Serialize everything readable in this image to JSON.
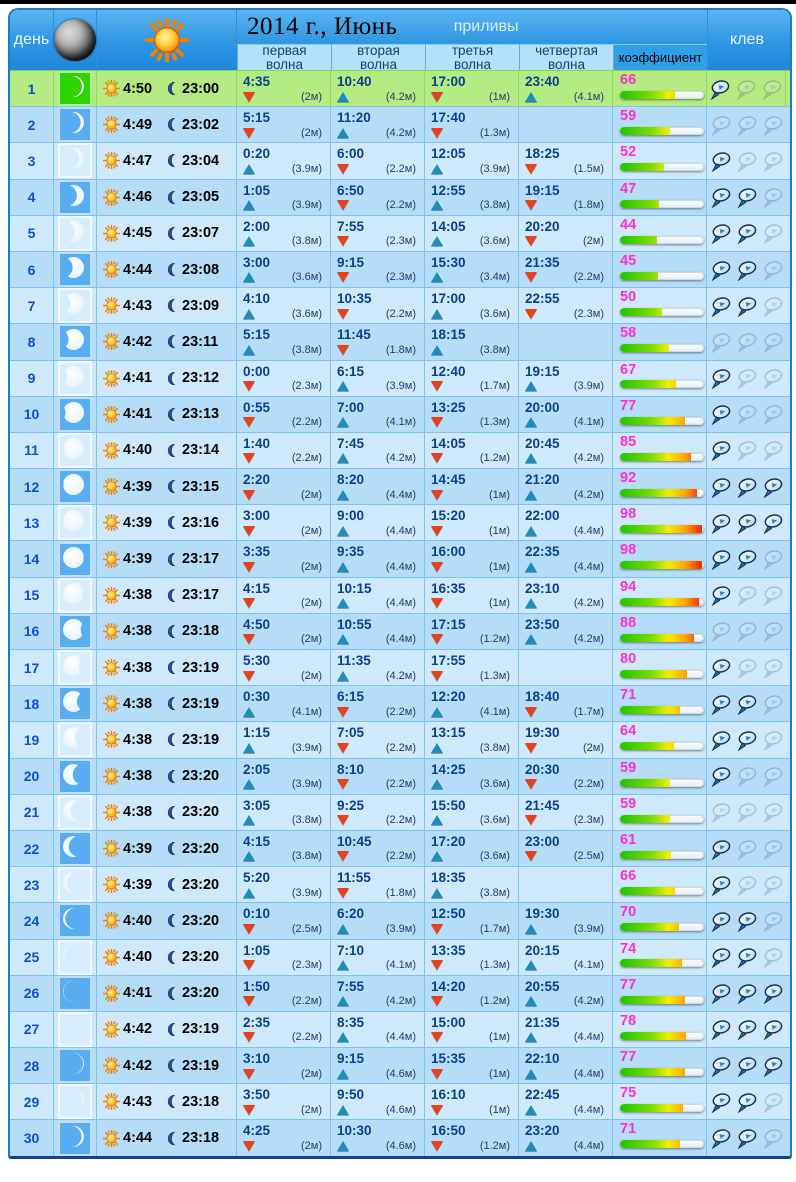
{
  "header": {
    "title": "2014 г., Июнь",
    "tides_label": "приливы",
    "day_label": "день",
    "bite_label": "клев",
    "coefficient_label": "коэффициент",
    "wave_labels": [
      {
        "l1": "первая",
        "l2": "волна"
      },
      {
        "l1": "вторая",
        "l2": "волна"
      },
      {
        "l1": "третья",
        "l2": "волна"
      },
      {
        "l1": "четвертая",
        "l2": "волна"
      }
    ]
  },
  "colors": {
    "header_blue": "#2f96e2",
    "row_even": "#b5ddf7",
    "row_odd": "#cfe9fc",
    "highlight_green": "#b4eb83",
    "moon_cell_even": "#58acf0",
    "moon_cell_odd": "#d7edfd",
    "moon_cell_highlight": "#2fd400",
    "coefficient_number": "#ff2fd0",
    "tide_up_arrow": "#1f8cba",
    "tide_down_arrow": "#e8401c",
    "time_text": "#0a3f8c"
  },
  "rows": [
    {
      "day": 1,
      "highlight": true,
      "sunrise": "4:50",
      "sunset": "23:00",
      "moon": {
        "lit": 0.1,
        "side": "right"
      },
      "coeff": 66,
      "fish": 1,
      "tides": [
        {
          "t": "4:35",
          "dir": "down",
          "h": "2м"
        },
        {
          "t": "10:40",
          "dir": "up",
          "h": "4.2м"
        },
        {
          "t": "17:00",
          "dir": "down",
          "h": "1м"
        },
        {
          "t": "23:40",
          "dir": "up",
          "h": "4.1м"
        }
      ]
    },
    {
      "day": 2,
      "highlight": false,
      "sunrise": "4:49",
      "sunset": "23:02",
      "moon": {
        "lit": 0.16,
        "side": "right"
      },
      "coeff": 59,
      "fish": 0,
      "tides": [
        {
          "t": "5:15",
          "dir": "down",
          "h": "2м"
        },
        {
          "t": "11:20",
          "dir": "up",
          "h": "4.2м"
        },
        {
          "t": "17:40",
          "dir": "down",
          "h": "1.3м"
        },
        null
      ]
    },
    {
      "day": 3,
      "highlight": false,
      "sunrise": "4:47",
      "sunset": "23:04",
      "moon": {
        "lit": 0.24,
        "side": "right"
      },
      "coeff": 52,
      "fish": 1,
      "tides": [
        {
          "t": "0:20",
          "dir": "up",
          "h": "3.9м"
        },
        {
          "t": "6:00",
          "dir": "down",
          "h": "2.2м"
        },
        {
          "t": "12:05",
          "dir": "up",
          "h": "3.9м"
        },
        {
          "t": "18:25",
          "dir": "down",
          "h": "1.5м"
        }
      ]
    },
    {
      "day": 4,
      "highlight": false,
      "sunrise": "4:46",
      "sunset": "23:05",
      "moon": {
        "lit": 0.34,
        "side": "right"
      },
      "coeff": 47,
      "fish": 2,
      "tides": [
        {
          "t": "1:05",
          "dir": "up",
          "h": "3.9м"
        },
        {
          "t": "6:50",
          "dir": "down",
          "h": "2.2м"
        },
        {
          "t": "12:55",
          "dir": "up",
          "h": "3.8м"
        },
        {
          "t": "19:15",
          "dir": "down",
          "h": "1.8м"
        }
      ]
    },
    {
      "day": 5,
      "highlight": false,
      "sunrise": "4:45",
      "sunset": "23:07",
      "moon": {
        "lit": 0.44,
        "side": "right"
      },
      "coeff": 44,
      "fish": 2,
      "tides": [
        {
          "t": "2:00",
          "dir": "up",
          "h": "3.8м"
        },
        {
          "t": "7:55",
          "dir": "down",
          "h": "2.3м"
        },
        {
          "t": "14:05",
          "dir": "up",
          "h": "3.6м"
        },
        {
          "t": "20:20",
          "dir": "down",
          "h": "2м"
        }
      ]
    },
    {
      "day": 6,
      "highlight": false,
      "sunrise": "4:44",
      "sunset": "23:08",
      "moon": {
        "lit": 0.54,
        "side": "right"
      },
      "coeff": 45,
      "fish": 2,
      "tides": [
        {
          "t": "3:00",
          "dir": "up",
          "h": "3.6м"
        },
        {
          "t": "9:15",
          "dir": "down",
          "h": "2.3м"
        },
        {
          "t": "15:30",
          "dir": "up",
          "h": "3.4м"
        },
        {
          "t": "21:35",
          "dir": "down",
          "h": "2.2м"
        }
      ]
    },
    {
      "day": 7,
      "highlight": false,
      "sunrise": "4:43",
      "sunset": "23:09",
      "moon": {
        "lit": 0.64,
        "side": "right"
      },
      "coeff": 50,
      "fish": 2,
      "tides": [
        {
          "t": "4:10",
          "dir": "up",
          "h": "3.6м"
        },
        {
          "t": "10:35",
          "dir": "down",
          "h": "2.2м"
        },
        {
          "t": "17:00",
          "dir": "up",
          "h": "3.6м"
        },
        {
          "t": "22:55",
          "dir": "down",
          "h": "2.3м"
        }
      ]
    },
    {
      "day": 8,
      "highlight": false,
      "sunrise": "4:42",
      "sunset": "23:11",
      "moon": {
        "lit": 0.74,
        "side": "right"
      },
      "coeff": 58,
      "fish": 0,
      "tides": [
        {
          "t": "5:15",
          "dir": "up",
          "h": "3.8м"
        },
        {
          "t": "11:45",
          "dir": "down",
          "h": "1.8м"
        },
        {
          "t": "18:15",
          "dir": "up",
          "h": "3.8м"
        },
        null
      ]
    },
    {
      "day": 9,
      "highlight": false,
      "sunrise": "4:41",
      "sunset": "23:12",
      "moon": {
        "lit": 0.82,
        "side": "right"
      },
      "coeff": 67,
      "fish": 1,
      "tides": [
        {
          "t": "0:00",
          "dir": "down",
          "h": "2.3м"
        },
        {
          "t": "6:15",
          "dir": "up",
          "h": "3.9м"
        },
        {
          "t": "12:40",
          "dir": "down",
          "h": "1.7м"
        },
        {
          "t": "19:15",
          "dir": "up",
          "h": "3.9м"
        }
      ]
    },
    {
      "day": 10,
      "highlight": false,
      "sunrise": "4:41",
      "sunset": "23:13",
      "moon": {
        "lit": 0.88,
        "side": "right"
      },
      "coeff": 77,
      "fish": 1,
      "tides": [
        {
          "t": "0:55",
          "dir": "down",
          "h": "2.2м"
        },
        {
          "t": "7:00",
          "dir": "up",
          "h": "4.1м"
        },
        {
          "t": "13:25",
          "dir": "down",
          "h": "1.3м"
        },
        {
          "t": "20:00",
          "dir": "up",
          "h": "4.1м"
        }
      ]
    },
    {
      "day": 11,
      "highlight": false,
      "sunrise": "4:40",
      "sunset": "23:14",
      "moon": {
        "lit": 0.93,
        "side": "right"
      },
      "coeff": 85,
      "fish": 1,
      "tides": [
        {
          "t": "1:40",
          "dir": "down",
          "h": "2.2м"
        },
        {
          "t": "7:45",
          "dir": "up",
          "h": "4.2м"
        },
        {
          "t": "14:05",
          "dir": "down",
          "h": "1.2м"
        },
        {
          "t": "20:45",
          "dir": "up",
          "h": "4.2м"
        }
      ]
    },
    {
      "day": 12,
      "highlight": false,
      "sunrise": "4:39",
      "sunset": "23:15",
      "moon": {
        "lit": 0.97,
        "side": "right"
      },
      "coeff": 92,
      "fish": 3,
      "tides": [
        {
          "t": "2:20",
          "dir": "down",
          "h": "2м"
        },
        {
          "t": "8:20",
          "dir": "up",
          "h": "4.4м"
        },
        {
          "t": "14:45",
          "dir": "down",
          "h": "1м"
        },
        {
          "t": "21:20",
          "dir": "up",
          "h": "4.2м"
        }
      ]
    },
    {
      "day": 13,
      "highlight": false,
      "sunrise": "4:39",
      "sunset": "23:16",
      "moon": {
        "lit": 1.0,
        "side": "right"
      },
      "coeff": 98,
      "fish": 3,
      "tides": [
        {
          "t": "3:00",
          "dir": "down",
          "h": "2м"
        },
        {
          "t": "9:00",
          "dir": "up",
          "h": "4.4м"
        },
        {
          "t": "15:20",
          "dir": "down",
          "h": "1м"
        },
        {
          "t": "22:00",
          "dir": "up",
          "h": "4.4м"
        }
      ]
    },
    {
      "day": 14,
      "highlight": false,
      "sunrise": "4:39",
      "sunset": "23:17",
      "moon": {
        "lit": 0.97,
        "side": "left"
      },
      "coeff": 98,
      "fish": 2,
      "tides": [
        {
          "t": "3:35",
          "dir": "down",
          "h": "2м"
        },
        {
          "t": "9:35",
          "dir": "up",
          "h": "4.4м"
        },
        {
          "t": "16:00",
          "dir": "down",
          "h": "1м"
        },
        {
          "t": "22:35",
          "dir": "up",
          "h": "4.4м"
        }
      ]
    },
    {
      "day": 15,
      "highlight": false,
      "sunrise": "4:38",
      "sunset": "23:17",
      "moon": {
        "lit": 0.92,
        "side": "left"
      },
      "coeff": 94,
      "fish": 1,
      "tides": [
        {
          "t": "4:15",
          "dir": "down",
          "h": "2м"
        },
        {
          "t": "10:15",
          "dir": "up",
          "h": "4.4м"
        },
        {
          "t": "16:35",
          "dir": "down",
          "h": "1м"
        },
        {
          "t": "23:10",
          "dir": "up",
          "h": "4.2м"
        }
      ]
    },
    {
      "day": 16,
      "highlight": false,
      "sunrise": "4:38",
      "sunset": "23:18",
      "moon": {
        "lit": 0.85,
        "side": "left"
      },
      "coeff": 88,
      "fish": 0,
      "tides": [
        {
          "t": "4:50",
          "dir": "down",
          "h": "2м"
        },
        {
          "t": "10:55",
          "dir": "up",
          "h": "4.4м"
        },
        {
          "t": "17:15",
          "dir": "down",
          "h": "1.2м"
        },
        {
          "t": "23:50",
          "dir": "up",
          "h": "4.2м"
        }
      ]
    },
    {
      "day": 17,
      "highlight": false,
      "sunrise": "4:38",
      "sunset": "23:19",
      "moon": {
        "lit": 0.76,
        "side": "left"
      },
      "coeff": 80,
      "fish": 1,
      "tides": [
        {
          "t": "5:30",
          "dir": "down",
          "h": "2м"
        },
        {
          "t": "11:35",
          "dir": "up",
          "h": "4.2м"
        },
        {
          "t": "17:55",
          "dir": "down",
          "h": "1.3м"
        },
        null
      ]
    },
    {
      "day": 18,
      "highlight": false,
      "sunrise": "4:38",
      "sunset": "23:19",
      "moon": {
        "lit": 0.66,
        "side": "left"
      },
      "coeff": 71,
      "fish": 2,
      "tides": [
        {
          "t": "0:30",
          "dir": "up",
          "h": "4.1м"
        },
        {
          "t": "6:15",
          "dir": "down",
          "h": "2.2м"
        },
        {
          "t": "12:20",
          "dir": "up",
          "h": "4.1м"
        },
        {
          "t": "18:40",
          "dir": "down",
          "h": "1.7м"
        }
      ]
    },
    {
      "day": 19,
      "highlight": false,
      "sunrise": "4:38",
      "sunset": "23:19",
      "moon": {
        "lit": 0.56,
        "side": "left"
      },
      "coeff": 64,
      "fish": 2,
      "tides": [
        {
          "t": "1:15",
          "dir": "up",
          "h": "3.9м"
        },
        {
          "t": "7:05",
          "dir": "down",
          "h": "2.2м"
        },
        {
          "t": "13:15",
          "dir": "up",
          "h": "3.8м"
        },
        {
          "t": "19:30",
          "dir": "down",
          "h": "2м"
        }
      ]
    },
    {
      "day": 20,
      "highlight": false,
      "sunrise": "4:38",
      "sunset": "23:20",
      "moon": {
        "lit": 0.46,
        "side": "left"
      },
      "coeff": 59,
      "fish": 1,
      "tides": [
        {
          "t": "2:05",
          "dir": "up",
          "h": "3.9м"
        },
        {
          "t": "8:10",
          "dir": "down",
          "h": "2.2м"
        },
        {
          "t": "14:25",
          "dir": "up",
          "h": "3.6м"
        },
        {
          "t": "20:30",
          "dir": "down",
          "h": "2.2м"
        }
      ]
    },
    {
      "day": 21,
      "highlight": false,
      "sunrise": "4:38",
      "sunset": "23:20",
      "moon": {
        "lit": 0.36,
        "side": "left"
      },
      "coeff": 59,
      "fish": 0,
      "tides": [
        {
          "t": "3:05",
          "dir": "up",
          "h": "3.8м"
        },
        {
          "t": "9:25",
          "dir": "down",
          "h": "2.2м"
        },
        {
          "t": "15:50",
          "dir": "up",
          "h": "3.6м"
        },
        {
          "t": "21:45",
          "dir": "down",
          "h": "2.3м"
        }
      ]
    },
    {
      "day": 22,
      "highlight": false,
      "sunrise": "4:39",
      "sunset": "23:20",
      "moon": {
        "lit": 0.27,
        "side": "left"
      },
      "coeff": 61,
      "fish": 1,
      "tides": [
        {
          "t": "4:15",
          "dir": "up",
          "h": "3.8м"
        },
        {
          "t": "10:45",
          "dir": "down",
          "h": "2.2м"
        },
        {
          "t": "17:20",
          "dir": "up",
          "h": "3.6м"
        },
        {
          "t": "23:00",
          "dir": "down",
          "h": "2.5м"
        }
      ]
    },
    {
      "day": 23,
      "highlight": false,
      "sunrise": "4:39",
      "sunset": "23:20",
      "moon": {
        "lit": 0.18,
        "side": "left"
      },
      "coeff": 66,
      "fish": 1,
      "tides": [
        {
          "t": "5:20",
          "dir": "up",
          "h": "3.9м"
        },
        {
          "t": "11:55",
          "dir": "down",
          "h": "1.8м"
        },
        {
          "t": "18:35",
          "dir": "up",
          "h": "3.8м"
        },
        null
      ]
    },
    {
      "day": 24,
      "highlight": false,
      "sunrise": "4:40",
      "sunset": "23:20",
      "moon": {
        "lit": 0.11,
        "side": "left"
      },
      "coeff": 70,
      "fish": 2,
      "tides": [
        {
          "t": "0:10",
          "dir": "down",
          "h": "2.5м"
        },
        {
          "t": "6:20",
          "dir": "up",
          "h": "3.9м"
        },
        {
          "t": "12:50",
          "dir": "down",
          "h": "1.7м"
        },
        {
          "t": "19:30",
          "dir": "up",
          "h": "3.9м"
        }
      ]
    },
    {
      "day": 25,
      "highlight": false,
      "sunrise": "4:40",
      "sunset": "23:20",
      "moon": {
        "lit": 0.05,
        "side": "left"
      },
      "coeff": 74,
      "fish": 2,
      "tides": [
        {
          "t": "1:05",
          "dir": "down",
          "h": "2.3м"
        },
        {
          "t": "7:10",
          "dir": "up",
          "h": "4.1м"
        },
        {
          "t": "13:35",
          "dir": "down",
          "h": "1.3м"
        },
        {
          "t": "20:15",
          "dir": "up",
          "h": "4.1м"
        }
      ]
    },
    {
      "day": 26,
      "highlight": false,
      "sunrise": "4:41",
      "sunset": "23:20",
      "moon": {
        "lit": 0.02,
        "side": "left"
      },
      "coeff": 77,
      "fish": 3,
      "tides": [
        {
          "t": "1:50",
          "dir": "down",
          "h": "2.2м"
        },
        {
          "t": "7:55",
          "dir": "up",
          "h": "4.2м"
        },
        {
          "t": "14:20",
          "dir": "down",
          "h": "1.2м"
        },
        {
          "t": "20:55",
          "dir": "up",
          "h": "4.2м"
        }
      ]
    },
    {
      "day": 27,
      "highlight": false,
      "sunrise": "4:42",
      "sunset": "23:19",
      "moon": {
        "lit": 0.0,
        "side": "right"
      },
      "coeff": 78,
      "fish": 3,
      "tides": [
        {
          "t": "2:35",
          "dir": "down",
          "h": "2.2м"
        },
        {
          "t": "8:35",
          "dir": "up",
          "h": "4.4м"
        },
        {
          "t": "15:00",
          "dir": "down",
          "h": "1м"
        },
        {
          "t": "21:35",
          "dir": "up",
          "h": "4.4м"
        }
      ]
    },
    {
      "day": 28,
      "highlight": false,
      "sunrise": "4:42",
      "sunset": "23:19",
      "moon": {
        "lit": 0.04,
        "side": "right"
      },
      "coeff": 77,
      "fish": 3,
      "tides": [
        {
          "t": "3:10",
          "dir": "down",
          "h": "2м"
        },
        {
          "t": "9:15",
          "dir": "up",
          "h": "4.6м"
        },
        {
          "t": "15:35",
          "dir": "down",
          "h": "1м"
        },
        {
          "t": "22:10",
          "dir": "up",
          "h": "4.4м"
        }
      ]
    },
    {
      "day": 29,
      "highlight": false,
      "sunrise": "4:43",
      "sunset": "23:18",
      "moon": {
        "lit": 0.08,
        "side": "right"
      },
      "coeff": 75,
      "fish": 2,
      "tides": [
        {
          "t": "3:50",
          "dir": "down",
          "h": "2м"
        },
        {
          "t": "9:50",
          "dir": "up",
          "h": "4.6м"
        },
        {
          "t": "16:10",
          "dir": "down",
          "h": "1м"
        },
        {
          "t": "22:45",
          "dir": "up",
          "h": "4.4м"
        }
      ]
    },
    {
      "day": 30,
      "highlight": false,
      "sunrise": "4:44",
      "sunset": "23:18",
      "moon": {
        "lit": 0.12,
        "side": "right"
      },
      "coeff": 71,
      "fish": 2,
      "tides": [
        {
          "t": "4:25",
          "dir": "down",
          "h": "2м"
        },
        {
          "t": "10:30",
          "dir": "up",
          "h": "4.6м"
        },
        {
          "t": "16:50",
          "dir": "down",
          "h": "1.2м"
        },
        {
          "t": "23:20",
          "dir": "up",
          "h": "4.4м"
        }
      ]
    }
  ]
}
